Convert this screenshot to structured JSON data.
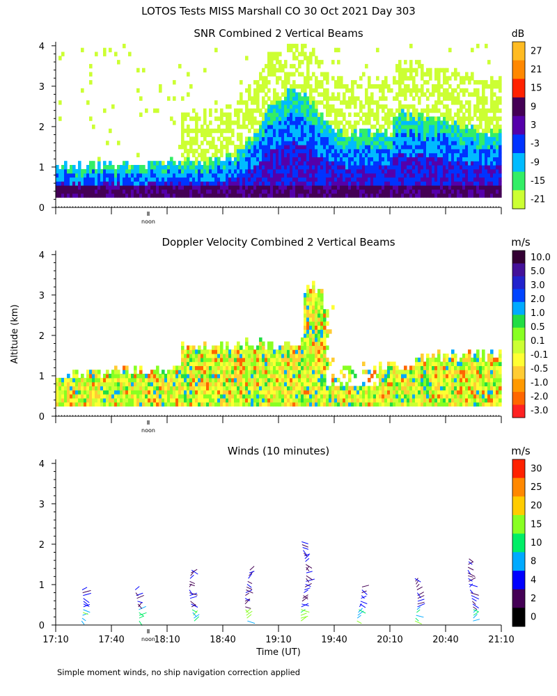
{
  "figure_title": "LOTOS Tests MISS Marshall CO  30 Oct 2021 Day 303",
  "ylabel": "Altitude (km)",
  "xlabel": "Time (UT)",
  "footnote": "Simple moment winds, no ship navigation correction applied",
  "noon_label": "noon",
  "colors": {
    "snr": [
      "#ccff33",
      "#33ee66",
      "#00bbff",
      "#0033ff",
      "#5500aa",
      "#440055",
      "#ff2200",
      "#ff8800",
      "#ffbb22"
    ],
    "doppler": [
      "#ff2222",
      "#ff6600",
      "#ff9900",
      "#ffcc33",
      "#ffff33",
      "#ccff33",
      "#88ff22",
      "#22dd44",
      "#00aaff",
      "#0044ff",
      "#2222cc",
      "#441199",
      "#330033"
    ],
    "wind": [
      "#000000",
      "#440055",
      "#0000ff",
      "#00aaff",
      "#00ee66",
      "#88ff22",
      "#ffcc00",
      "#ff8800",
      "#ff2200"
    ]
  },
  "chart_data": [
    {
      "type": "heatmap",
      "title": "SNR Combined 2 Vertical Beams",
      "units": "dB",
      "colorbar_ticks": [
        "27",
        "21",
        "15",
        "9",
        "3",
        "-3",
        "-9",
        "-15",
        "-21"
      ],
      "yticks": [
        "0",
        "1",
        "2",
        "3",
        "4"
      ],
      "ylim": [
        0,
        4.1
      ],
      "xlim": [
        "17:10",
        "21:10"
      ],
      "xlabel": "",
      "grid": false
    },
    {
      "type": "heatmap",
      "title": "Doppler Velocity Combined 2 Vertical Beams",
      "units": "m/s",
      "colorbar_ticks": [
        "10.0",
        "5.0",
        "3.0",
        "2.0",
        "1.0",
        "0.5",
        "0.1",
        "-0.1",
        "-0.5",
        "-1.0",
        "-2.0",
        "-3.0"
      ],
      "yticks": [
        "0",
        "1",
        "2",
        "3",
        "4"
      ],
      "ylim": [
        0,
        4.1
      ],
      "xlim": [
        "17:10",
        "21:10"
      ],
      "xlabel": "",
      "grid": false
    },
    {
      "type": "scatter",
      "title": "Winds (10 minutes)",
      "units": "m/s",
      "colorbar_ticks": [
        "30",
        "25",
        "20",
        "15",
        "10",
        "8",
        "4",
        "2",
        "0"
      ],
      "yticks": [
        "0",
        "1",
        "2",
        "3",
        "4"
      ],
      "xticks": [
        "17:10",
        "17:40",
        "18:10",
        "18:40",
        "19:10",
        "19:40",
        "20:10",
        "20:40",
        "21:10"
      ],
      "ylim": [
        0,
        4.1
      ],
      "xlim": [
        "17:10",
        "21:10"
      ],
      "xlabel": "Time (UT)",
      "profile_times": [
        "17:25",
        "17:55",
        "18:25",
        "18:55",
        "19:25",
        "19:55",
        "20:25",
        "20:55"
      ],
      "profile_tops_km": [
        0.9,
        0.9,
        1.4,
        1.4,
        2.1,
        0.95,
        1.2,
        1.65
      ]
    }
  ]
}
